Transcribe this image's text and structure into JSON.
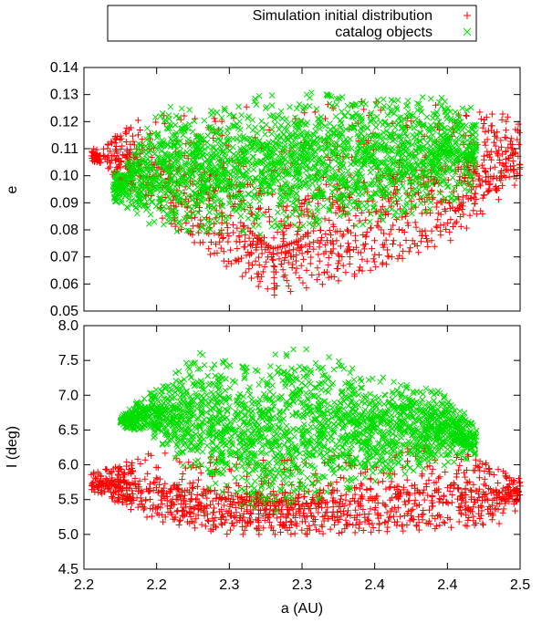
{
  "legend": {
    "position": "top-center, above plots",
    "entries": [
      {
        "label": "Simulation initial distribution",
        "marker": "plus",
        "color": "#ff0000"
      },
      {
        "label": "catalog objects",
        "marker": "cross",
        "color": "#00dd00"
      }
    ]
  },
  "chart_data": [
    {
      "type": "scatter",
      "panel": "top",
      "xlabel": "",
      "ylabel": "e",
      "xlim": [
        2.2,
        2.5
      ],
      "ylim": [
        0.05,
        0.14
      ],
      "x_ticks": [
        2.2,
        2.25,
        2.3,
        2.35,
        2.4,
        2.45,
        2.5
      ],
      "x_tick_labels_shown": false,
      "y_ticks": [
        "0.05",
        "0.06",
        "0.07",
        "0.08",
        "0.09",
        "0.10",
        "0.11",
        "0.12",
        "0.13",
        "0.14"
      ],
      "grid": false,
      "series": [
        {
          "name": "Simulation initial distribution",
          "color": "#ff0000",
          "marker": "plus",
          "distribution": {
            "shape": "fan of radial streaks converging at a=2.33, e=0.076 plus an outer envelope",
            "a_range": [
              2.205,
              2.5
            ],
            "e_range": [
              0.055,
              0.125
            ],
            "envelope_top": [
              [
                2.21,
                0.11
              ],
              [
                2.24,
                0.122
              ],
              [
                2.3,
                0.126
              ],
              [
                2.4,
                0.128
              ],
              [
                2.47,
                0.126
              ],
              [
                2.5,
                0.121
              ]
            ],
            "envelope_bottom": [
              [
                2.21,
                0.105
              ],
              [
                2.26,
                0.082
              ],
              [
                2.3,
                0.066
              ],
              [
                2.33,
                0.056
              ],
              [
                2.38,
                0.062
              ],
              [
                2.45,
                0.076
              ],
              [
                2.5,
                0.1
              ]
            ]
          }
        },
        {
          "name": "catalog objects",
          "color": "#00dd00",
          "marker": "cross",
          "distribution": {
            "shape": "dense cloud",
            "a_range": [
              2.22,
              2.47
            ],
            "e_range": [
              0.076,
              0.134
            ],
            "envelope_top": [
              [
                2.225,
                0.102
              ],
              [
                2.25,
                0.125
              ],
              [
                2.3,
                0.128
              ],
              [
                2.35,
                0.132
              ],
              [
                2.4,
                0.131
              ],
              [
                2.46,
                0.13
              ],
              [
                2.475,
                0.122
              ]
            ],
            "envelope_bottom": [
              [
                2.225,
                0.09
              ],
              [
                2.25,
                0.08
              ],
              [
                2.3,
                0.077
              ],
              [
                2.35,
                0.079
              ],
              [
                2.4,
                0.082
              ],
              [
                2.44,
                0.087
              ],
              [
                2.475,
                0.095
              ]
            ]
          }
        }
      ]
    },
    {
      "type": "scatter",
      "panel": "bottom",
      "xlabel": "a (AU)",
      "ylabel": "I (deg)",
      "xlim": [
        2.2,
        2.5
      ],
      "ylim": [
        4.5,
        8.0
      ],
      "x_ticks": [
        2.2,
        2.25,
        2.3,
        2.35,
        2.4,
        2.45,
        2.5
      ],
      "x_tick_labels": [
        "2.2",
        "2.2",
        "2.3",
        "2.3",
        "2.4",
        "2.4",
        "2.5"
      ],
      "y_ticks": [
        "4.5",
        "5.0",
        "5.5",
        "6.0",
        "6.5",
        "7.0",
        "7.5",
        "8.0"
      ],
      "grid": false,
      "series": [
        {
          "name": "Simulation initial distribution",
          "color": "#ff0000",
          "marker": "plus",
          "distribution": {
            "shape": "radial streaks converging at a=2.32, I=5.55 plus an elliptical envelope",
            "a_range": [
              2.205,
              2.5
            ],
            "I_range": [
              4.95,
              6.35
            ],
            "envelope_top": [
              [
                2.21,
                5.9
              ],
              [
                2.25,
                6.2
              ],
              [
                2.3,
                6.1
              ],
              [
                2.4,
                6.2
              ],
              [
                2.45,
                6.3
              ],
              [
                2.5,
                5.8
              ]
            ],
            "envelope_bottom": [
              [
                2.21,
                5.6
              ],
              [
                2.25,
                5.2
              ],
              [
                2.3,
                5.0
              ],
              [
                2.35,
                5.0
              ],
              [
                2.42,
                5.05
              ],
              [
                2.48,
                5.15
              ],
              [
                2.5,
                5.5
              ]
            ]
          }
        },
        {
          "name": "catalog objects",
          "color": "#00dd00",
          "marker": "cross",
          "distribution": {
            "shape": "dense cloud",
            "a_range": [
              2.225,
              2.47
            ],
            "I_range": [
              5.25,
              7.8
            ],
            "envelope_top": [
              [
                2.225,
                6.7
              ],
              [
                2.25,
                7.15
              ],
              [
                2.28,
                7.65
              ],
              [
                2.32,
                7.45
              ],
              [
                2.345,
                7.75
              ],
              [
                2.4,
                7.3
              ],
              [
                2.45,
                7.05
              ],
              [
                2.47,
                6.6
              ]
            ],
            "envelope_bottom": [
              [
                2.225,
                6.55
              ],
              [
                2.25,
                6.35
              ],
              [
                2.28,
                5.75
              ],
              [
                2.3,
                5.45
              ],
              [
                2.33,
                5.3
              ],
              [
                2.37,
                5.55
              ],
              [
                2.42,
                5.85
              ],
              [
                2.47,
                6.1
              ]
            ]
          }
        }
      ]
    }
  ]
}
